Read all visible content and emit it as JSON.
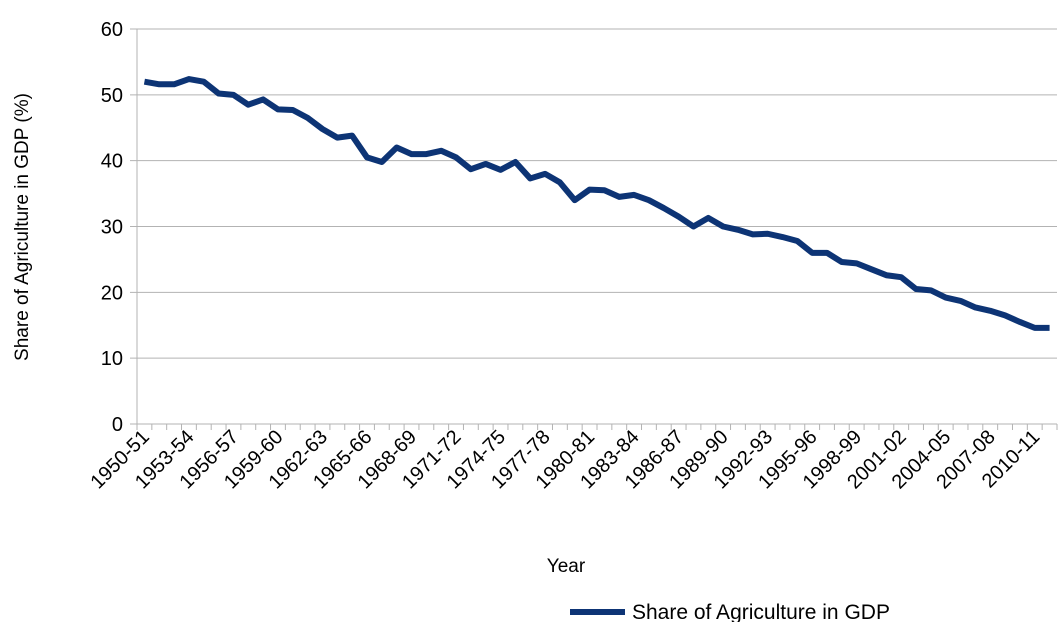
{
  "chart_data": {
    "type": "line",
    "x_label": "Year",
    "y_label": "Share of Agriculture in GDP (%)",
    "categories": [
      "1950-51",
      null,
      null,
      "1953-54",
      null,
      null,
      "1956-57",
      null,
      null,
      "1959-60",
      null,
      null,
      "1962-63",
      null,
      null,
      "1965-66",
      null,
      null,
      "1968-69",
      null,
      null,
      "1971-72",
      null,
      null,
      "1974-75",
      null,
      null,
      "1977-78",
      null,
      null,
      "1980-81",
      null,
      null,
      "1983-84",
      null,
      null,
      "1986-87",
      null,
      null,
      "1989-90",
      null,
      null,
      "1992-93",
      null,
      null,
      "1995-96",
      null,
      null,
      "1998-99",
      null,
      null,
      "2001-02",
      null,
      null,
      "2004-05",
      null,
      null,
      "2007-08",
      null,
      null,
      "2010-11",
      null
    ],
    "series": [
      {
        "name": "Share of Agriculture in GDP",
        "color": "#0d3475",
        "values": [
          52,
          51.6,
          51.6,
          52.4,
          52,
          50.2,
          50,
          48.5,
          49.3,
          47.8,
          47.7,
          46.5,
          44.8,
          43.5,
          43.8,
          40.5,
          39.8,
          42,
          41,
          41,
          41.5,
          40.5,
          38.7,
          39.5,
          38.6,
          39.8,
          37.3,
          38,
          36.7,
          34,
          35.6,
          35.5,
          34.5,
          34.8,
          34,
          32.8,
          31.5,
          30,
          31.3,
          30,
          29.5,
          28.8,
          28.9,
          28.4,
          27.8,
          26,
          26,
          24.6,
          24.4,
          23.5,
          22.6,
          22.3,
          20.5,
          20.3,
          19.2,
          18.7,
          17.7,
          17.2,
          16.5,
          15.5,
          14.6,
          14.6
        ]
      }
    ],
    "ylim": [
      0,
      60
    ],
    "yticks": [
      0,
      10,
      20,
      30,
      40,
      50,
      60
    ],
    "grid": true,
    "legend": "bottom"
  }
}
